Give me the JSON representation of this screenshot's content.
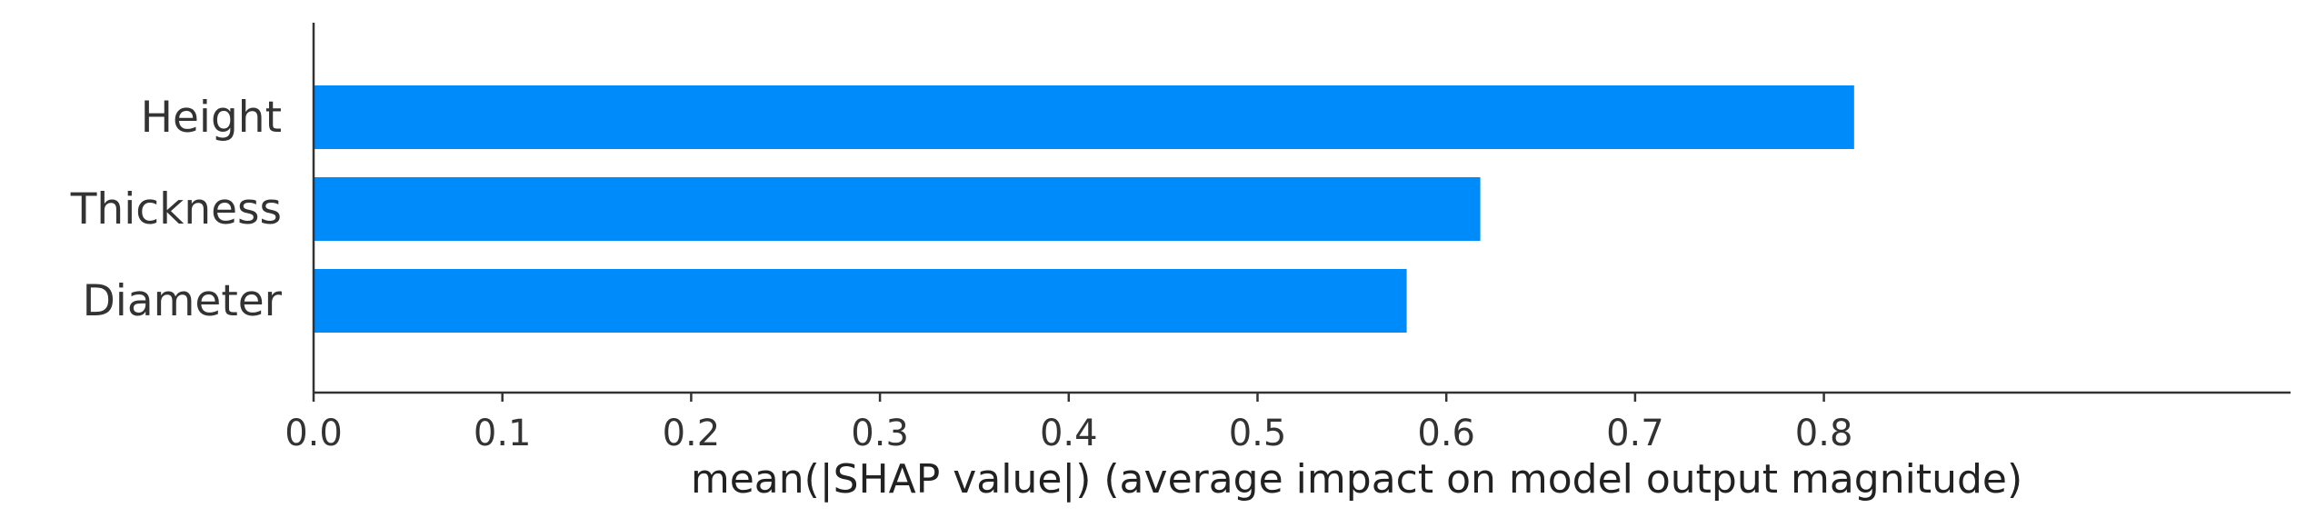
{
  "chart_data": {
    "type": "bar",
    "orientation": "horizontal",
    "categories": [
      "Height",
      "Thickness",
      "Diameter"
    ],
    "values": [
      0.816,
      0.618,
      0.579
    ],
    "title": "",
    "xlabel": "mean(|SHAP value|) (average impact on model output magnitude)",
    "ylabel": "",
    "xlim": [
      0,
      0.852
    ],
    "xticks": [
      "0.0",
      "0.1",
      "0.2",
      "0.3",
      "0.4",
      "0.5",
      "0.6",
      "0.7",
      "0.8"
    ],
    "grid": false,
    "bar_color": "#008bfb"
  }
}
